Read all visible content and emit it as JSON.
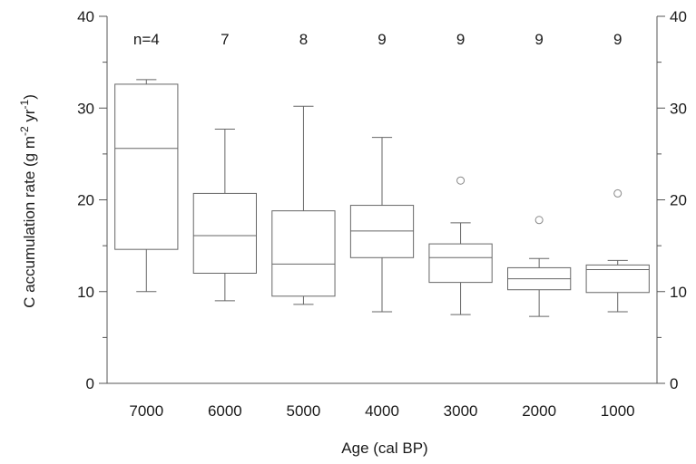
{
  "chart_data": {
    "type": "box",
    "categories": [
      "7000",
      "6000",
      "5000",
      "4000",
      "3000",
      "2000",
      "1000"
    ],
    "n_labels": [
      "n=4",
      "7",
      "8",
      "9",
      "9",
      "9",
      "9"
    ],
    "boxes": [
      {
        "min": 10.0,
        "q1": 14.6,
        "median": 25.6,
        "q3": 32.6,
        "max": 33.1,
        "outliers": []
      },
      {
        "min": 9.0,
        "q1": 12.0,
        "median": 16.1,
        "q3": 20.7,
        "max": 27.7,
        "outliers": []
      },
      {
        "min": 8.6,
        "q1": 9.5,
        "median": 13.0,
        "q3": 18.8,
        "max": 30.2,
        "outliers": []
      },
      {
        "min": 7.8,
        "q1": 13.7,
        "median": 16.6,
        "q3": 19.4,
        "max": 26.8,
        "outliers": []
      },
      {
        "min": 7.5,
        "q1": 11.0,
        "median": 13.7,
        "q3": 15.2,
        "max": 17.5,
        "outliers": [
          22.1
        ]
      },
      {
        "min": 7.3,
        "q1": 10.2,
        "median": 11.4,
        "q3": 12.6,
        "max": 13.6,
        "outliers": [
          17.8
        ]
      },
      {
        "min": 7.8,
        "q1": 9.9,
        "median": 12.4,
        "q3": 12.9,
        "max": 13.4,
        "outliers": [
          20.7
        ]
      }
    ],
    "xlabel": "Age (cal BP)",
    "ylabel_main": "C accumulation rate (g m",
    "ylabel_sup1": "-2",
    "ylabel_mid": " yr",
    "ylabel_sup2": "-1",
    "ylabel_end": ")",
    "ylim": [
      0,
      40
    ],
    "yticks": [
      "0",
      "10",
      "20",
      "30",
      "40"
    ],
    "grid": false,
    "legend": "none"
  }
}
